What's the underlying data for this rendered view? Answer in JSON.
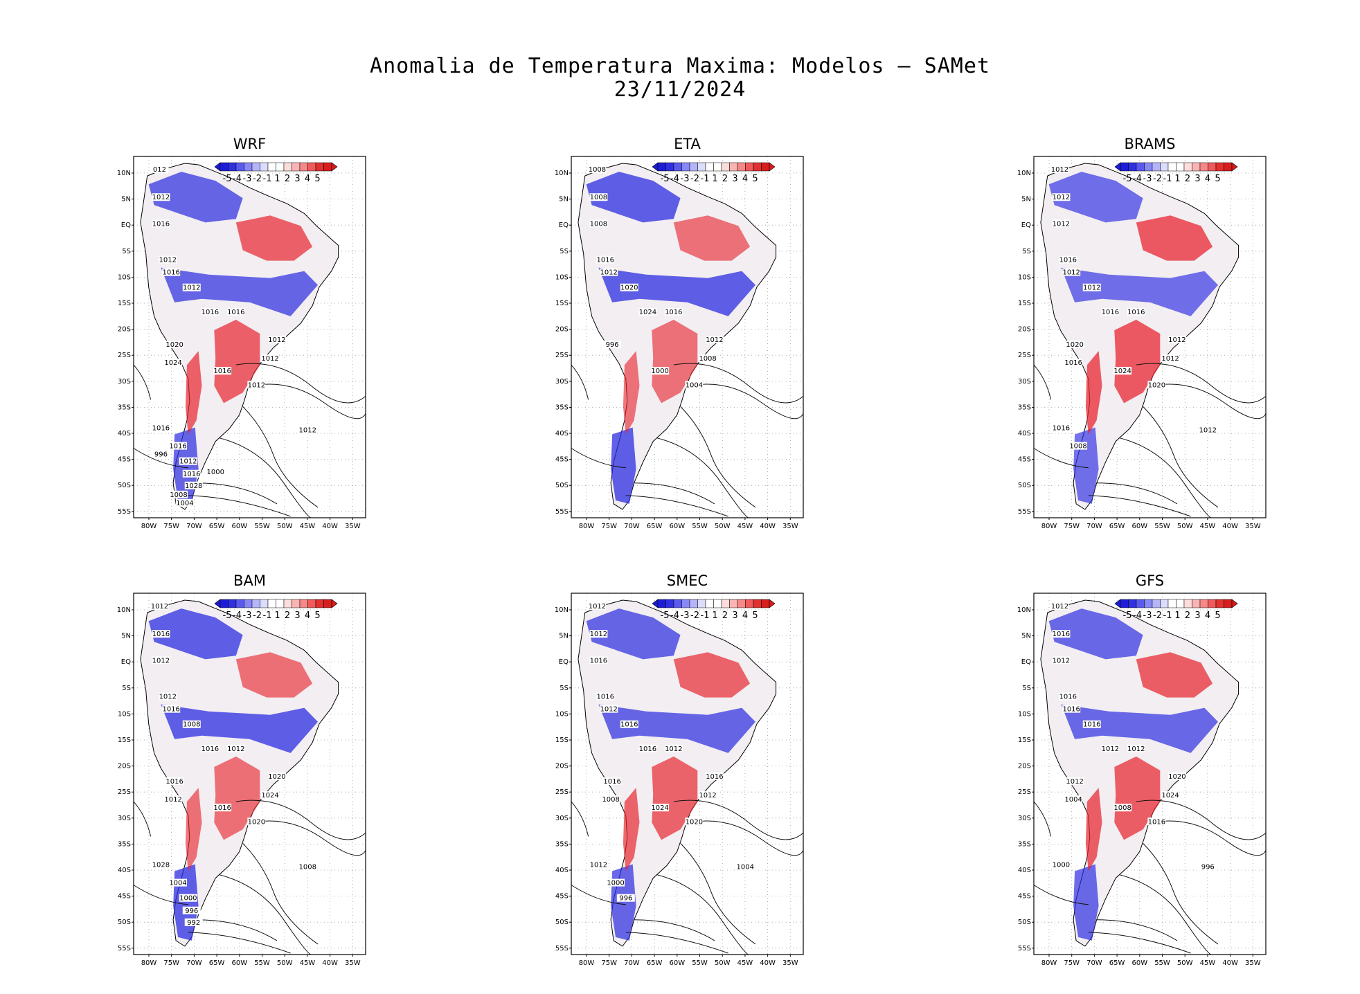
{
  "figure": {
    "title_line1": "Anomalia de Temperatura Maxima: Modelos – SAMet",
    "title_line2": "23/11/2024"
  },
  "axes": {
    "lat_labels": [
      "10N",
      "5N",
      "EQ",
      "5S",
      "10S",
      "15S",
      "20S",
      "25S",
      "30S",
      "35S",
      "40S",
      "45S",
      "50S",
      "55S"
    ],
    "lon_labels": [
      "80W",
      "75W",
      "70W",
      "65W",
      "60W",
      "55W",
      "50W",
      "45W",
      "40W",
      "35W"
    ]
  },
  "colorbar": {
    "labels": [
      "-5",
      "-4",
      "-3",
      "-2",
      "-1",
      "1",
      "2",
      "3",
      "4",
      "5"
    ],
    "colors": [
      "#1d1dd8",
      "#3030e0",
      "#5a5af0",
      "#8888f6",
      "#b4b4fa",
      "#dcdcfd",
      "#ffffff",
      "#ffffff",
      "#fddcdc",
      "#fab4b4",
      "#f68888",
      "#f05a5a",
      "#e03030",
      "#d81d1d"
    ]
  },
  "map_colors": {
    "warm": "#e8202a",
    "cold": "#2a2ae0",
    "land_light": "#f2eef2"
  },
  "panels": [
    {
      "name": "WRF",
      "contour_labels": [
        "012",
        "1012",
        "1016",
        "1012",
        "1016",
        "1012",
        "1016",
        "1016",
        "1012",
        "1012",
        "1012",
        "1016",
        "1020",
        "1024",
        "1016",
        "1012",
        "1016",
        "1012",
        "1016",
        "1028",
        "1008",
        "1004",
        "1000",
        "996"
      ]
    },
    {
      "name": "ETA",
      "contour_labels": [
        "1008",
        "1008",
        "1008",
        "1016",
        "1012",
        "1020",
        "1024",
        "1016",
        "1012",
        "1008",
        "1004",
        "1000",
        "996"
      ]
    },
    {
      "name": "BRAMS",
      "contour_labels": [
        "1012",
        "1012",
        "1012",
        "1016",
        "1012",
        "1012",
        "1016",
        "1016",
        "1012",
        "1012",
        "1020",
        "1024",
        "1020",
        "1016",
        "1016",
        "1012",
        "1008"
      ]
    },
    {
      "name": "BAM",
      "contour_labels": [
        "1012",
        "1016",
        "1012",
        "1012",
        "1016",
        "1008",
        "1016",
        "1012",
        "1020",
        "1024",
        "1020",
        "1016",
        "1016",
        "1012",
        "1028",
        "1008",
        "1004",
        "1000",
        "996",
        "992"
      ]
    },
    {
      "name": "SMEC",
      "contour_labels": [
        "1012",
        "1012",
        "1016",
        "1016",
        "1012",
        "1016",
        "1016",
        "1012",
        "1016",
        "1012",
        "1020",
        "1024",
        "1016",
        "1008",
        "1012",
        "1004",
        "1000",
        "996"
      ]
    },
    {
      "name": "GFS",
      "contour_labels": [
        "1012",
        "1016",
        "1012",
        "1016",
        "1016",
        "1016",
        "1012",
        "1012",
        "1020",
        "1024",
        "1016",
        "1008",
        "1012",
        "1004",
        "1000",
        "996"
      ]
    }
  ]
}
